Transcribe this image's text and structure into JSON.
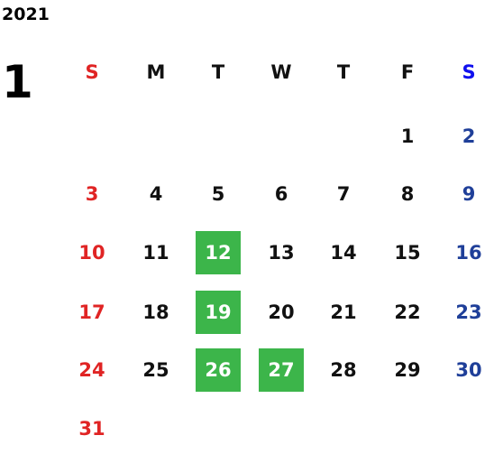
{
  "year": "2021",
  "month": "1",
  "weekdays": [
    "S",
    "M",
    "T",
    "W",
    "T",
    "F",
    "S"
  ],
  "weeks": [
    [
      null,
      null,
      null,
      null,
      null,
      {
        "day": "1"
      },
      {
        "day": "2"
      }
    ],
    [
      {
        "day": "3"
      },
      {
        "day": "4"
      },
      {
        "day": "5"
      },
      {
        "day": "6"
      },
      {
        "day": "7"
      },
      {
        "day": "8"
      },
      {
        "day": "9"
      }
    ],
    [
      {
        "day": "10"
      },
      {
        "day": "11"
      },
      {
        "day": "12",
        "highlight": true
      },
      {
        "day": "13"
      },
      {
        "day": "14"
      },
      {
        "day": "15"
      },
      {
        "day": "16"
      }
    ],
    [
      {
        "day": "17"
      },
      {
        "day": "18"
      },
      {
        "day": "19",
        "highlight": true
      },
      {
        "day": "20"
      },
      {
        "day": "21"
      },
      {
        "day": "22"
      },
      {
        "day": "23"
      }
    ],
    [
      {
        "day": "24"
      },
      {
        "day": "25"
      },
      {
        "day": "26",
        "highlight": true
      },
      {
        "day": "27",
        "highlight": true
      },
      {
        "day": "28"
      },
      {
        "day": "29"
      },
      {
        "day": "30"
      }
    ],
    [
      {
        "day": "31"
      },
      null,
      null,
      null,
      null,
      null,
      null
    ]
  ]
}
